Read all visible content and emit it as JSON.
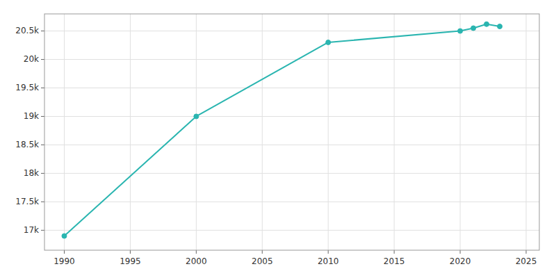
{
  "chart_data": {
    "type": "line",
    "x": [
      1990,
      2000,
      2010,
      2020,
      2021,
      2022,
      2023
    ],
    "values": [
      16900,
      19000,
      20300,
      20500,
      20550,
      20620,
      20580
    ],
    "color": "#2ab5b0",
    "marker": "circle",
    "xlim": [
      1988.5,
      2026
    ],
    "ylim": [
      16650,
      20800
    ],
    "xticks": [
      1990,
      1995,
      2000,
      2005,
      2010,
      2015,
      2020,
      2025
    ],
    "yticks": [
      {
        "value": 17000,
        "label": "17k"
      },
      {
        "value": 17500,
        "label": "17.5k"
      },
      {
        "value": 18000,
        "label": "18k"
      },
      {
        "value": 18500,
        "label": "18.5k"
      },
      {
        "value": 19000,
        "label": "19k"
      },
      {
        "value": 19500,
        "label": "19.5k"
      },
      {
        "value": 20000,
        "label": "20k"
      },
      {
        "value": 20500,
        "label": "20.5k"
      }
    ],
    "grid": true
  }
}
